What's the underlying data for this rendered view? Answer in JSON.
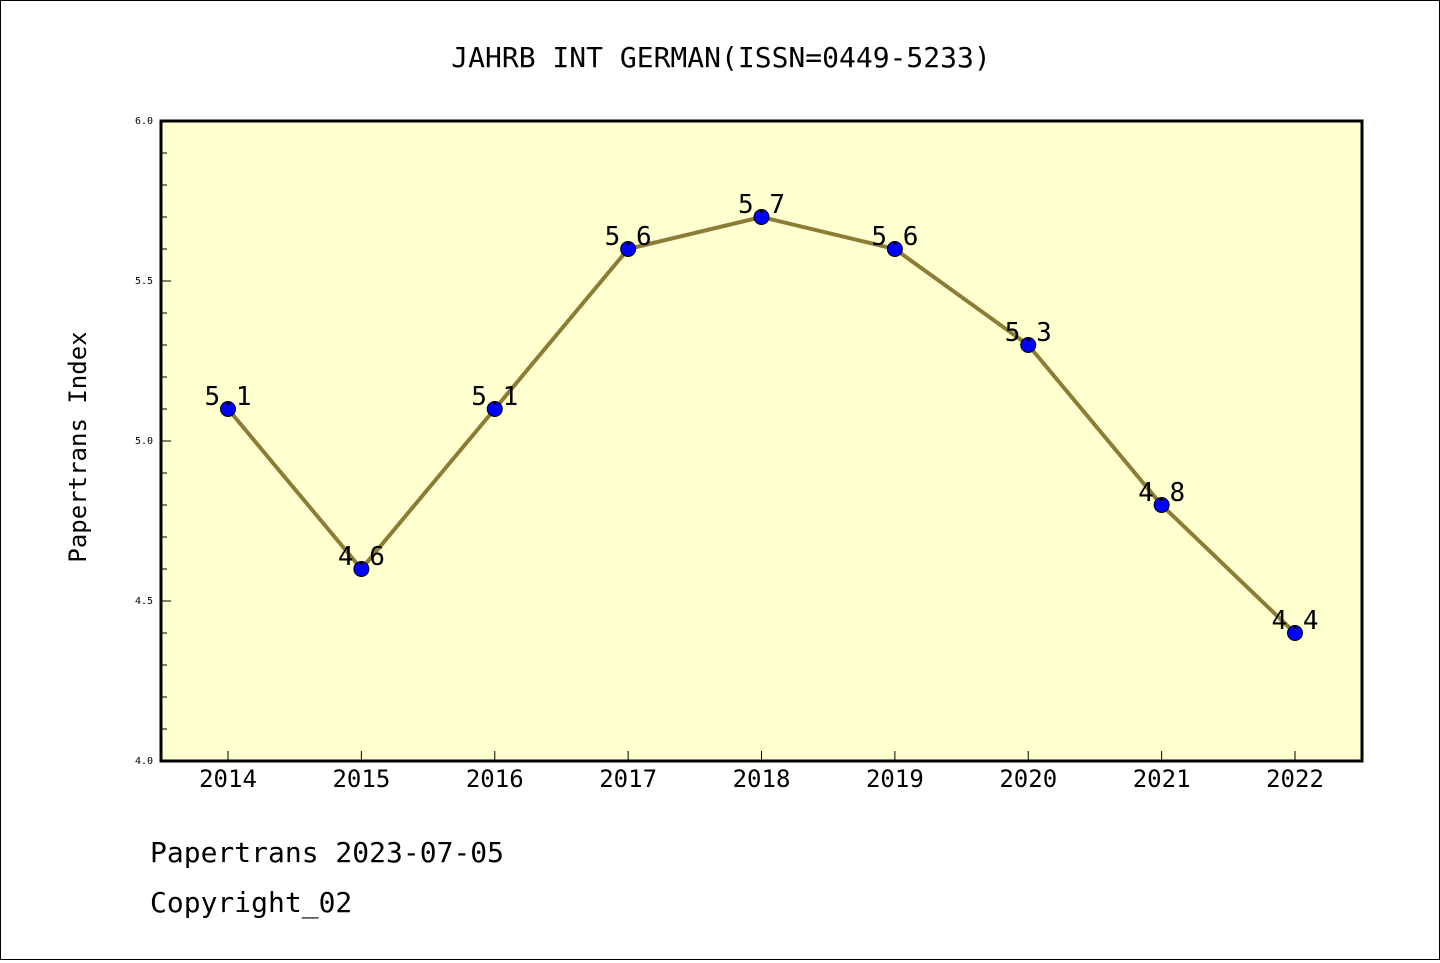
{
  "chart_data": {
    "type": "line",
    "title": "JAHRB INT GERMAN(ISSN=0449-5233)",
    "xlabel": "",
    "ylabel": "Papertrans Index",
    "categories": [
      "2014",
      "2015",
      "2016",
      "2017",
      "2018",
      "2019",
      "2020",
      "2021",
      "2022"
    ],
    "series": [
      {
        "values": [
          5.1,
          4.6,
          5.1,
          5.6,
          5.7,
          5.6,
          5.3,
          4.8,
          4.4
        ],
        "labels": [
          "5.1",
          "4.6",
          "5.1",
          "5.6",
          "5.7",
          "5.6",
          "5.3",
          "4.8",
          "4.4"
        ]
      }
    ],
    "ylim": [
      4.0,
      6.0
    ],
    "yticks": [
      "4.0",
      "4.5",
      "5.0",
      "5.5",
      "6.0"
    ],
    "grid": false,
    "legend": "none",
    "colors": {
      "plot_background": "#ffffd0",
      "line": "#8b7d35",
      "marker": "#0000ff"
    }
  },
  "footer": {
    "line1": "Papertrans 2023-07-05",
    "line2": "Copyright_02"
  }
}
